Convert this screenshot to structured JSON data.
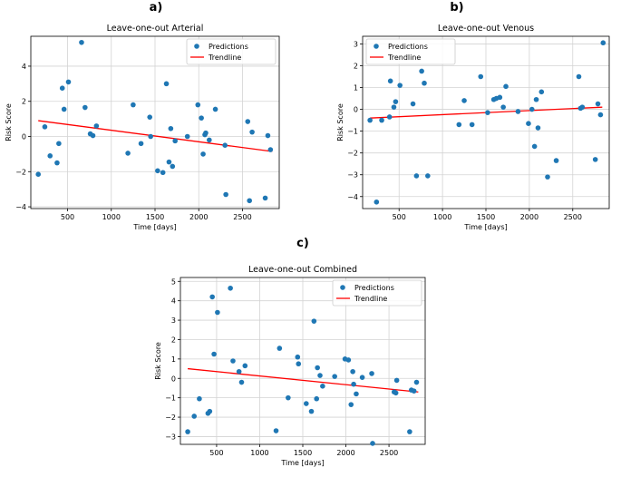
{
  "chart_data": [
    {
      "panel_label": "a)",
      "type": "scatter",
      "title": "Leave-one-out Arterial",
      "xlabel": "Time [days]",
      "ylabel": "Risk Score",
      "xlim": [
        80,
        2920
      ],
      "ylim": [
        -4.1,
        5.7
      ],
      "xticks": [
        500,
        1000,
        1500,
        2000,
        2500
      ],
      "xtick_labels": [
        "500",
        "1000",
        "1500",
        "2000",
        "2500"
      ],
      "yticks": [
        -4,
        -2,
        0,
        2,
        4
      ],
      "ytick_labels": [
        "−4",
        "−2",
        "0",
        "2",
        "4"
      ],
      "grid": true,
      "legend": {
        "position": "top-right",
        "entries": [
          "Predictions",
          "Trendline"
        ]
      },
      "series": [
        {
          "name": "Predictions",
          "kind": "scatter",
          "color": "#1f77b4",
          "points": [
            [
              165,
              -2.15
            ],
            [
              240,
              0.55
            ],
            [
              300,
              -1.1
            ],
            [
              380,
              -1.5
            ],
            [
              400,
              -0.4
            ],
            [
              440,
              2.75
            ],
            [
              460,
              1.55
            ],
            [
              510,
              3.1
            ],
            [
              660,
              5.35
            ],
            [
              700,
              1.65
            ],
            [
              760,
              0.15
            ],
            [
              790,
              0.05
            ],
            [
              830,
              0.6
            ],
            [
              1190,
              -0.95
            ],
            [
              1250,
              1.8
            ],
            [
              1340,
              -0.4
            ],
            [
              1440,
              1.1
            ],
            [
              1450,
              0.0
            ],
            [
              1530,
              -1.95
            ],
            [
              1590,
              -2.05
            ],
            [
              1630,
              3.0
            ],
            [
              1660,
              -1.45
            ],
            [
              1680,
              0.45
            ],
            [
              1700,
              -1.7
            ],
            [
              1730,
              -0.25
            ],
            [
              1870,
              0.0
            ],
            [
              1990,
              1.8
            ],
            [
              2030,
              1.05
            ],
            [
              2050,
              -1.0
            ],
            [
              2070,
              0.1
            ],
            [
              2080,
              0.2
            ],
            [
              2120,
              -0.2
            ],
            [
              2190,
              1.55
            ],
            [
              2300,
              -0.5
            ],
            [
              2310,
              -3.3
            ],
            [
              2560,
              0.85
            ],
            [
              2580,
              -3.65
            ],
            [
              2610,
              0.25
            ],
            [
              2760,
              -3.5
            ],
            [
              2790,
              0.05
            ],
            [
              2820,
              -0.75
            ]
          ]
        },
        {
          "name": "Trendline",
          "kind": "line",
          "color": "#ff0000",
          "x": [
            165,
            2840
          ],
          "y": [
            0.9,
            -0.85
          ]
        }
      ]
    },
    {
      "panel_label": "b)",
      "type": "scatter",
      "title": "Leave-one-out Venous",
      "xlabel": "Time [days]",
      "ylabel": "Risk Score",
      "xlim": [
        80,
        2920
      ],
      "ylim": [
        -4.55,
        3.35
      ],
      "xticks": [
        500,
        1000,
        1500,
        2000,
        2500
      ],
      "xtick_labels": [
        "500",
        "1000",
        "1500",
        "2000",
        "2500"
      ],
      "yticks": [
        -4,
        -3,
        -2,
        -1,
        0,
        1,
        2,
        3
      ],
      "ytick_labels": [
        "−4",
        "−3",
        "−2",
        "−1",
        "0",
        "1",
        "2",
        "3"
      ],
      "grid": true,
      "legend": {
        "position": "top-left",
        "entries": [
          "Predictions",
          "Trendline"
        ]
      },
      "series": [
        {
          "name": "Predictions",
          "kind": "scatter",
          "color": "#1f77b4",
          "points": [
            [
              165,
              -0.5
            ],
            [
              240,
              -4.25
            ],
            [
              300,
              -0.5
            ],
            [
              390,
              -0.35
            ],
            [
              400,
              1.3
            ],
            [
              440,
              0.1
            ],
            [
              460,
              0.35
            ],
            [
              510,
              1.1
            ],
            [
              660,
              0.25
            ],
            [
              700,
              -3.05
            ],
            [
              760,
              1.75
            ],
            [
              790,
              1.2
            ],
            [
              830,
              -3.05
            ],
            [
              1190,
              -0.7
            ],
            [
              1250,
              0.4
            ],
            [
              1340,
              -0.7
            ],
            [
              1440,
              1.5
            ],
            [
              1520,
              -0.15
            ],
            [
              1590,
              0.45
            ],
            [
              1620,
              0.5
            ],
            [
              1660,
              0.55
            ],
            [
              1700,
              0.1
            ],
            [
              1730,
              1.05
            ],
            [
              1870,
              -0.1
            ],
            [
              1990,
              -0.65
            ],
            [
              2030,
              0.0
            ],
            [
              2060,
              -1.7
            ],
            [
              2080,
              0.45
            ],
            [
              2100,
              -0.85
            ],
            [
              2140,
              0.8
            ],
            [
              2210,
              -3.1
            ],
            [
              2310,
              -2.35
            ],
            [
              2570,
              1.5
            ],
            [
              2590,
              0.05
            ],
            [
              2610,
              0.1
            ],
            [
              2760,
              -2.3
            ],
            [
              2790,
              0.25
            ],
            [
              2820,
              -0.25
            ],
            [
              2850,
              3.05
            ]
          ]
        },
        {
          "name": "Trendline",
          "kind": "line",
          "color": "#ff0000",
          "x": [
            165,
            2840
          ],
          "y": [
            -0.4,
            0.1
          ]
        }
      ]
    },
    {
      "panel_label": "c)",
      "type": "scatter",
      "title": "Leave-one-out Combined",
      "xlabel": "Time [days]",
      "ylabel": "Risk Score",
      "xlim": [
        80,
        2920
      ],
      "ylim": [
        -3.4,
        5.2
      ],
      "xticks": [
        500,
        1000,
        1500,
        2000,
        2500
      ],
      "xtick_labels": [
        "500",
        "1000",
        "1500",
        "2000",
        "2500"
      ],
      "yticks": [
        -3,
        -2,
        -1,
        0,
        1,
        2,
        3,
        4,
        5
      ],
      "ytick_labels": [
        "−3",
        "−2",
        "−1",
        "0",
        "1",
        "2",
        "3",
        "4",
        "5"
      ],
      "grid": true,
      "legend": {
        "position": "top-right",
        "entries": [
          "Predictions",
          "Trendline"
        ]
      },
      "series": [
        {
          "name": "Predictions",
          "kind": "scatter",
          "color": "#1f77b4",
          "points": [
            [
              165,
              -2.75
            ],
            [
              240,
              -1.95
            ],
            [
              300,
              -1.05
            ],
            [
              400,
              -1.8
            ],
            [
              420,
              -1.7
            ],
            [
              450,
              4.2
            ],
            [
              470,
              1.25
            ],
            [
              510,
              3.4
            ],
            [
              660,
              4.65
            ],
            [
              690,
              0.9
            ],
            [
              760,
              0.35
            ],
            [
              790,
              -0.2
            ],
            [
              830,
              0.65
            ],
            [
              1190,
              -2.7
            ],
            [
              1230,
              1.55
            ],
            [
              1330,
              -1.0
            ],
            [
              1440,
              1.1
            ],
            [
              1450,
              0.75
            ],
            [
              1540,
              -1.3
            ],
            [
              1600,
              -1.7
            ],
            [
              1630,
              2.95
            ],
            [
              1660,
              -1.05
            ],
            [
              1670,
              0.55
            ],
            [
              1700,
              0.15
            ],
            [
              1730,
              -0.4
            ],
            [
              1870,
              0.1
            ],
            [
              1990,
              1.0
            ],
            [
              2030,
              0.95
            ],
            [
              2060,
              -1.35
            ],
            [
              2080,
              0.35
            ],
            [
              2090,
              -0.3
            ],
            [
              2120,
              -0.8
            ],
            [
              2190,
              0.05
            ],
            [
              2300,
              0.25
            ],
            [
              2310,
              -3.35
            ],
            [
              2560,
              -0.7
            ],
            [
              2580,
              -0.75
            ],
            [
              2590,
              -0.1
            ],
            [
              2740,
              -2.75
            ],
            [
              2760,
              -0.6
            ],
            [
              2790,
              -0.65
            ],
            [
              2820,
              -0.2
            ]
          ]
        },
        {
          "name": "Trendline",
          "kind": "line",
          "color": "#ff0000",
          "x": [
            165,
            2840
          ],
          "y": [
            0.5,
            -0.7
          ]
        }
      ]
    }
  ]
}
